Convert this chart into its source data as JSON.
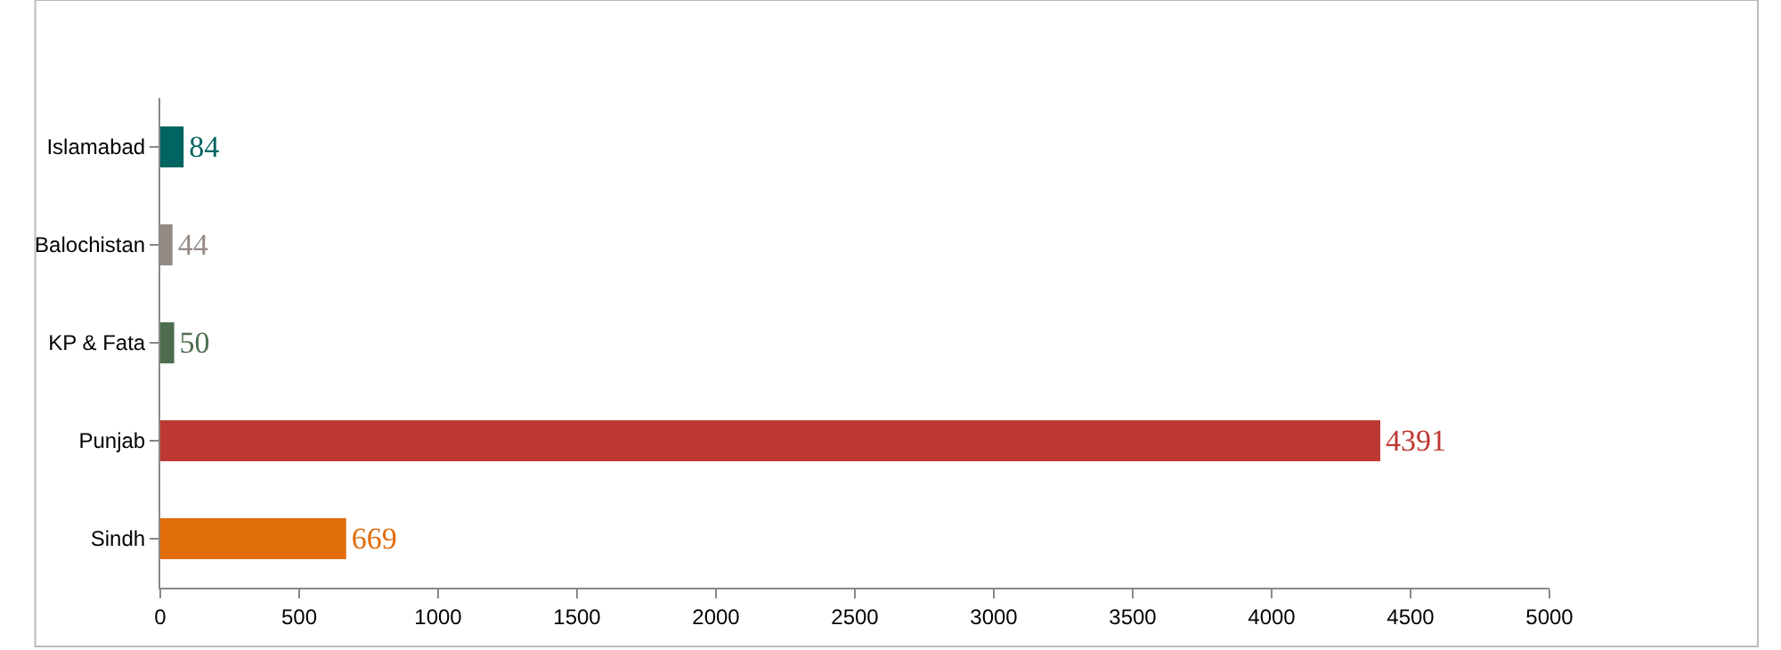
{
  "chart_data": {
    "type": "bar",
    "orientation": "horizontal",
    "categories": [
      "Islamabad",
      "Balochistan",
      "KP & Fata",
      "Punjab",
      "Sindh"
    ],
    "values": [
      84,
      44,
      50,
      4391,
      669
    ],
    "colors": [
      "#006461",
      "#948a84",
      "#4e6d4f",
      "#be3834",
      "#e06c0a"
    ],
    "xlim": [
      0,
      5000
    ],
    "xticks": [
      0,
      500,
      1000,
      1500,
      2000,
      2500,
      3000,
      3500,
      4000,
      4500,
      5000
    ],
    "data_labels": true
  }
}
